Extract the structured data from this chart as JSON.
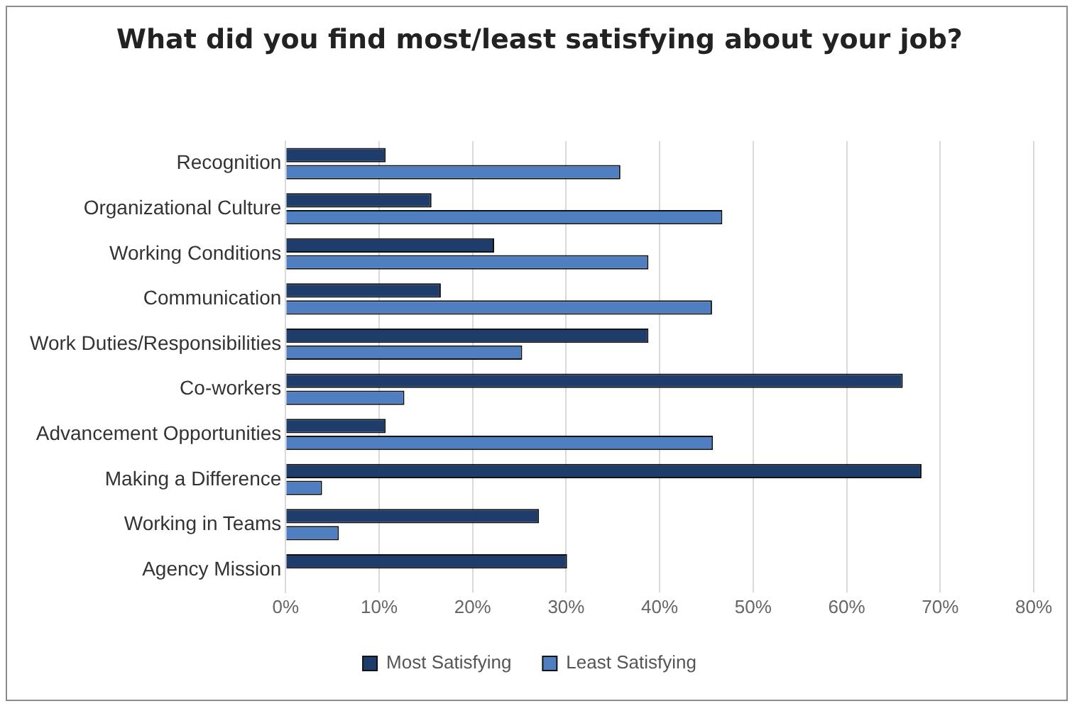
{
  "chart_data": {
    "type": "bar",
    "orientation": "horizontal",
    "title": "What did you find most/least satisfying about your job?",
    "categories": [
      "Recognition",
      "Organizational Culture",
      "Working Conditions",
      "Communication",
      "Work Duties/Responsibilities",
      "Co-workers",
      "Advancement Opportunities",
      "Making a Difference",
      "Working in Teams",
      "Agency Mission"
    ],
    "series": [
      {
        "name": "Most Satisfying",
        "color": "#1f3d6b",
        "values": [
          10.7,
          15.6,
          22.3,
          16.6,
          38.8,
          66,
          10.7,
          68,
          27.1,
          30.1
        ]
      },
      {
        "name": "Least Satisfying",
        "color": "#4f7fc0",
        "values": [
          35.8,
          46.7,
          38.8,
          45.6,
          25.3,
          12.7,
          45.7,
          3.9,
          5.7,
          null
        ]
      }
    ],
    "xlim": [
      0,
      80
    ],
    "xticks": [
      {
        "value": 0,
        "label": "0%"
      },
      {
        "value": 10,
        "label": "10%"
      },
      {
        "value": 20,
        "label": "20%"
      },
      {
        "value": 30,
        "label": "30%"
      },
      {
        "value": 40,
        "label": "40%"
      },
      {
        "value": 50,
        "label": "50%"
      },
      {
        "value": 60,
        "label": "60%"
      },
      {
        "value": 70,
        "label": "70%"
      },
      {
        "value": 80,
        "label": "80%"
      }
    ],
    "grid": "x",
    "legend": "bottom"
  }
}
